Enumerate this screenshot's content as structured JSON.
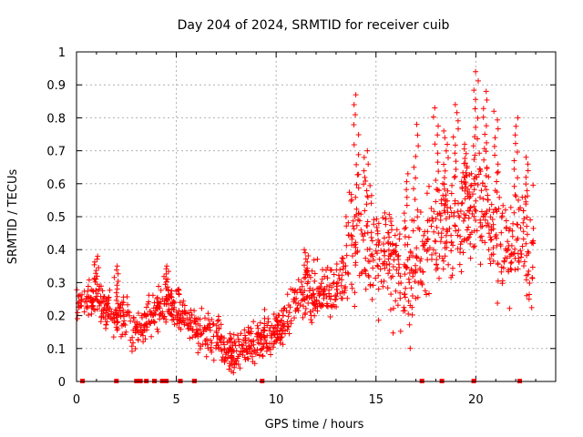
{
  "chart_data": {
    "type": "scatter",
    "title": "Day 204 of 2024, SRMTID for receiver cuib",
    "xlabel": "GPS time / hours",
    "ylabel": "SRMTID / TECUs",
    "xlim": [
      0,
      24
    ],
    "ylim": [
      0,
      1
    ],
    "x_ticks": [
      "0",
      "5",
      "10",
      "15",
      "20"
    ],
    "y_ticks": [
      "0",
      "0.1",
      "0.2",
      "0.3",
      "0.4",
      "0.5",
      "0.6",
      "0.7",
      "0.8",
      "0.9",
      "1"
    ],
    "grid": true,
    "marker": "+",
    "color": "#ff0000",
    "trend": [
      [
        0.0,
        0.24
      ],
      [
        0.5,
        0.26
      ],
      [
        1.0,
        0.26
      ],
      [
        1.5,
        0.22
      ],
      [
        2.0,
        0.19
      ],
      [
        2.5,
        0.21
      ],
      [
        3.0,
        0.14
      ],
      [
        3.5,
        0.19
      ],
      [
        4.0,
        0.22
      ],
      [
        4.5,
        0.24
      ],
      [
        5.0,
        0.22
      ],
      [
        5.5,
        0.19
      ],
      [
        6.0,
        0.16
      ],
      [
        6.5,
        0.15
      ],
      [
        7.0,
        0.13
      ],
      [
        7.5,
        0.1
      ],
      [
        8.0,
        0.08
      ],
      [
        8.5,
        0.1
      ],
      [
        9.0,
        0.12
      ],
      [
        9.5,
        0.14
      ],
      [
        10.0,
        0.15
      ],
      [
        10.5,
        0.18
      ],
      [
        11.0,
        0.26
      ],
      [
        11.5,
        0.27
      ],
      [
        12.0,
        0.26
      ],
      [
        12.5,
        0.27
      ],
      [
        13.0,
        0.28
      ],
      [
        13.5,
        0.35
      ],
      [
        14.0,
        0.45
      ],
      [
        14.5,
        0.42
      ],
      [
        15.0,
        0.38
      ],
      [
        15.5,
        0.4
      ],
      [
        16.0,
        0.35
      ],
      [
        16.5,
        0.3
      ],
      [
        17.0,
        0.33
      ],
      [
        17.5,
        0.42
      ],
      [
        18.0,
        0.45
      ],
      [
        18.5,
        0.48
      ],
      [
        19.0,
        0.5
      ],
      [
        19.5,
        0.52
      ],
      [
        20.0,
        0.55
      ],
      [
        20.5,
        0.52
      ],
      [
        21.0,
        0.45
      ],
      [
        21.5,
        0.42
      ],
      [
        22.0,
        0.44
      ],
      [
        22.5,
        0.4
      ],
      [
        23.0,
        0.4
      ]
    ],
    "spikes": [
      [
        1.0,
        0.38
      ],
      [
        2.0,
        0.35
      ],
      [
        4.5,
        0.35
      ],
      [
        11.5,
        0.4
      ],
      [
        14.0,
        0.87
      ],
      [
        14.5,
        0.7
      ],
      [
        16.5,
        0.63
      ],
      [
        17.0,
        0.78
      ],
      [
        18.0,
        0.83
      ],
      [
        18.5,
        0.76
      ],
      [
        19.0,
        0.84
      ],
      [
        19.5,
        0.72
      ],
      [
        20.0,
        0.94
      ],
      [
        20.5,
        0.88
      ],
      [
        21.0,
        0.82
      ],
      [
        22.0,
        0.8
      ],
      [
        22.5,
        0.68
      ]
    ],
    "time_range": [
      0.0,
      22.9
    ],
    "zero_markers": [
      0.3,
      2.0,
      3.0,
      3.2,
      3.5,
      3.9,
      4.3,
      4.5,
      5.2,
      5.9,
      9.3,
      17.3,
      18.3,
      19.9,
      22.2
    ]
  }
}
